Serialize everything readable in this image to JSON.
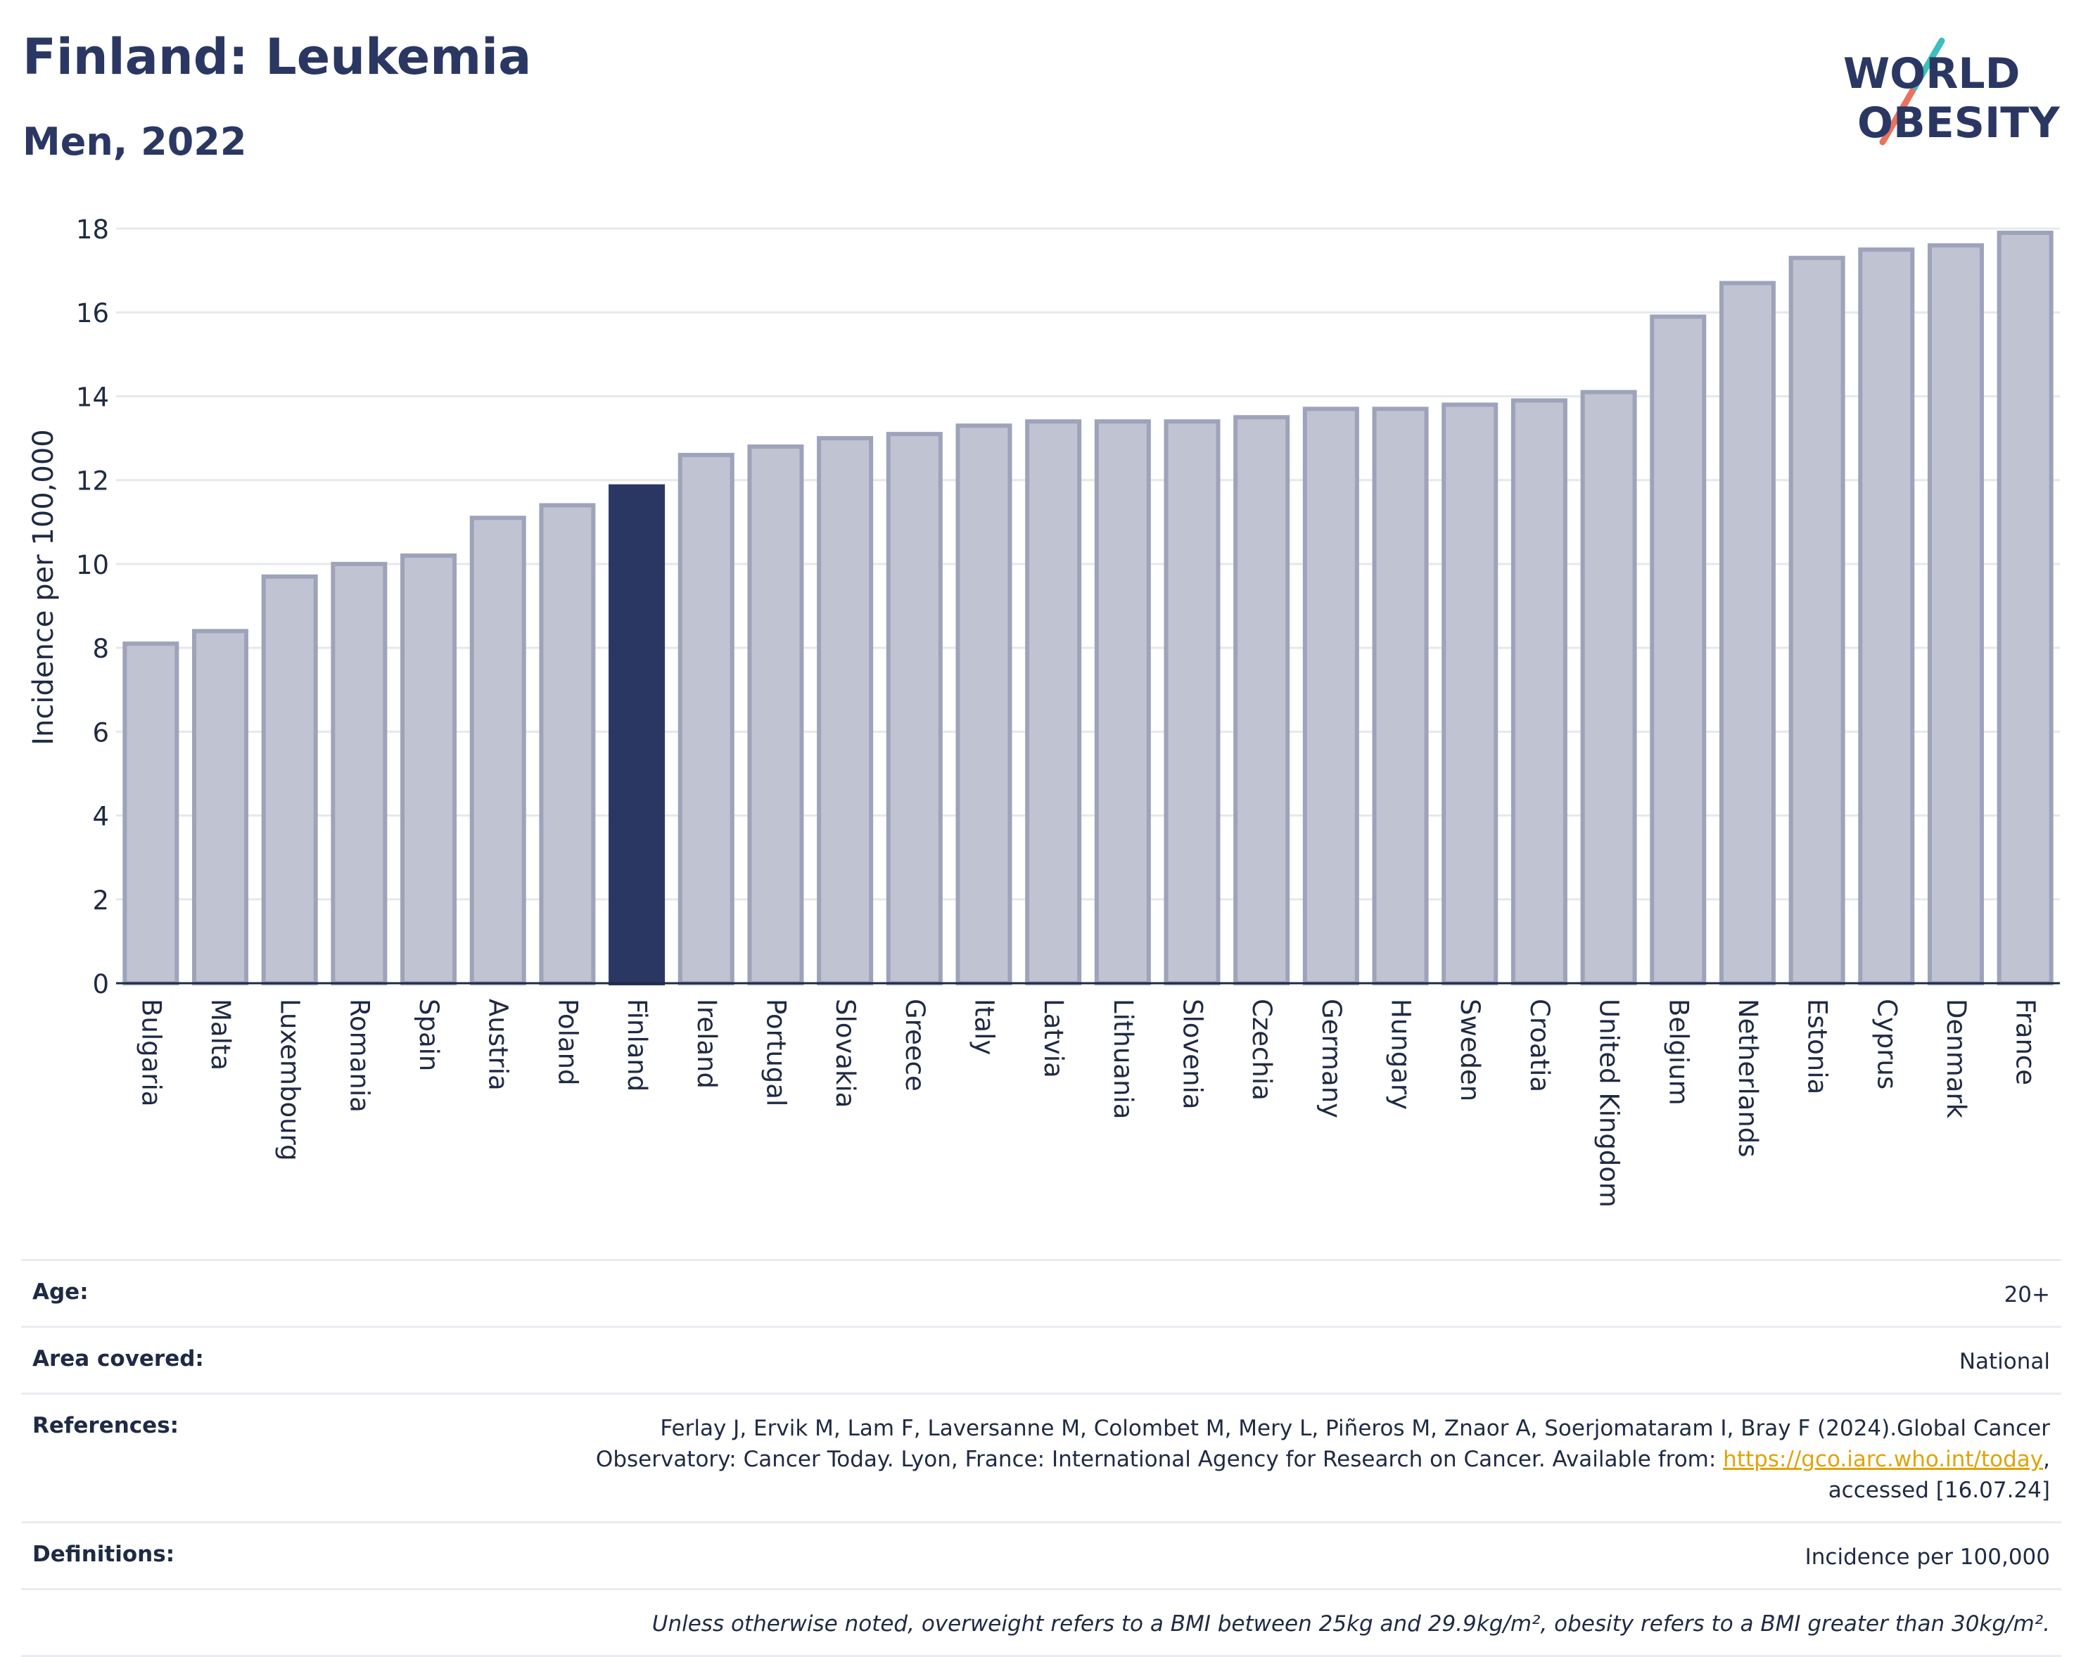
{
  "header": {
    "title": "Finland: Leukemia",
    "subtitle": "Men, 2022"
  },
  "logo": {
    "line1": "WORLD",
    "line2": "OBESITY",
    "colors": {
      "text": "#2b3763",
      "slash_teal": "#3bbfbf",
      "slash_coral": "#e8735f"
    }
  },
  "chart_data": {
    "type": "bar",
    "ylabel": "Incidence per 100,000",
    "ylim": [
      0,
      18
    ],
    "yticks": [
      0,
      2,
      4,
      6,
      8,
      10,
      12,
      14,
      16,
      18
    ],
    "grid": true,
    "highlight": "Finland",
    "colors": {
      "bar": "#c0c3d1",
      "bar_stroke": "#9ea3bb",
      "highlight": "#2b3763"
    },
    "categories": [
      "Bulgaria",
      "Malta",
      "Luxembourg",
      "Romania",
      "Spain",
      "Austria",
      "Poland",
      "Finland",
      "Ireland",
      "Portugal",
      "Slovakia",
      "Greece",
      "Italy",
      "Latvia",
      "Lithuania",
      "Slovenia",
      "Czechia",
      "Germany",
      "Hungary",
      "Sweden",
      "Croatia",
      "United Kingdom",
      "Belgium",
      "Netherlands",
      "Estonia",
      "Cyprus",
      "Denmark",
      "France"
    ],
    "values": [
      8.1,
      8.4,
      9.7,
      10.0,
      10.2,
      11.1,
      11.4,
      11.85,
      12.6,
      12.8,
      13.0,
      13.1,
      13.3,
      13.4,
      13.4,
      13.4,
      13.5,
      13.7,
      13.7,
      13.8,
      13.9,
      14.1,
      15.9,
      16.7,
      17.3,
      17.5,
      17.6,
      17.9
    ]
  },
  "info": {
    "age_label": "Age:",
    "age_value": "20+",
    "area_label": "Area covered:",
    "area_value": "National",
    "references_label": "References:",
    "references_text_1": "Ferlay J, Ervik M, Lam F, Laversanne M, Colombet M, Mery L, Piñeros M, Znaor A, Soerjomataram I, Bray F (2024).Global Cancer",
    "references_text_2": "Observatory: Cancer Today. Lyon, France: International Agency for Research on Cancer. Available from: ",
    "references_link": "https://gco.iarc.who.int/today",
    "references_text_3": ",",
    "references_text_4": "accessed [16.07.24]",
    "definitions_label": "Definitions:",
    "definitions_value": "Incidence per 100,000",
    "note": "Unless otherwise noted, overweight refers to a BMI between 25kg and 29.9kg/m², obesity refers to a BMI greater than 30kg/m²."
  }
}
